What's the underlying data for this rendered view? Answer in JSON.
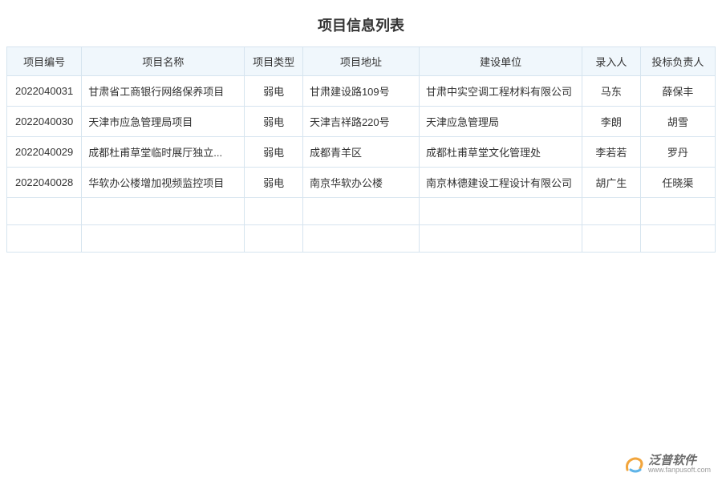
{
  "title": "项目信息列表",
  "columns": [
    {
      "key": "id",
      "label": "项目编号",
      "class": "col-id"
    },
    {
      "key": "name",
      "label": "项目名称",
      "class": "col-name"
    },
    {
      "key": "type",
      "label": "项目类型",
      "class": "col-type"
    },
    {
      "key": "addr",
      "label": "项目地址",
      "class": "col-addr"
    },
    {
      "key": "unit",
      "label": "建设单位",
      "class": "col-unit"
    },
    {
      "key": "entry",
      "label": "录入人",
      "class": "col-person",
      "link_header": true
    },
    {
      "key": "resp",
      "label": "投标负责人",
      "class": "col-resp"
    }
  ],
  "rows": [
    {
      "id": "2022040031",
      "name": "甘肃省工商银行网络保养项目",
      "type": "弱电",
      "addr": "甘肃建设路109号",
      "unit": "甘肃中实空调工程材料有限公司",
      "entry": "马东",
      "resp": "薛保丰"
    },
    {
      "id": "2022040030",
      "name": "天津市应急管理局项目",
      "type": "弱电",
      "addr": "天津吉祥路220号",
      "unit": "天津应急管理局",
      "entry": "李朗",
      "resp": "胡雪"
    },
    {
      "id": "2022040029",
      "name": "成都杜甫草堂临时展厅独立...",
      "type": "弱电",
      "addr": "成都青羊区",
      "unit": "成都杜甫草堂文化管理处",
      "entry": "李若若",
      "resp": "罗丹"
    },
    {
      "id": "2022040028",
      "name": "华软办公楼增加视频监控项目",
      "type": "弱电",
      "addr": "南京华软办公楼",
      "unit": "南京林德建设工程设计有限公司",
      "entry": "胡广生",
      "resp": "任晓渠"
    }
  ],
  "empty_rows": 2,
  "link_columns": [
    "entry",
    "resp"
  ],
  "left_align_columns": [
    "name",
    "addr",
    "unit"
  ],
  "colors": {
    "header_bg": "#f0f7fc",
    "border": "#d6e4ef",
    "text": "#333333",
    "link": "#3b8fd6"
  },
  "footer": {
    "brand_cn": "泛普软件",
    "brand_url": "www.fanpusoft.com"
  }
}
